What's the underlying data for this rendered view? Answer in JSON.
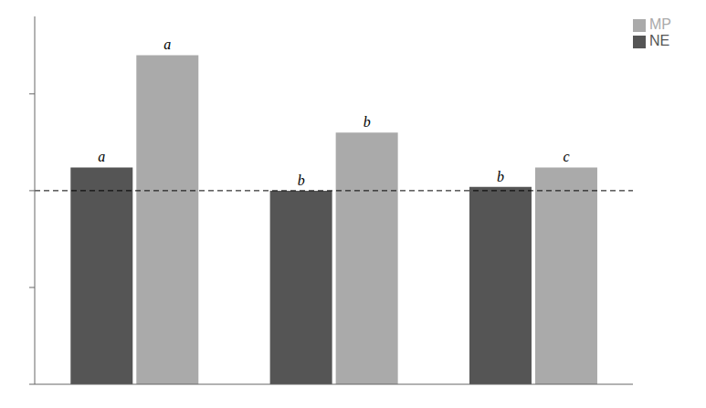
{
  "chart_data": {
    "type": "bar",
    "categories": [
      null,
      null,
      null
    ],
    "series": [
      {
        "name": "NE",
        "color": "#555555",
        "values": [
          112,
          100,
          102
        ],
        "annotations": [
          "a",
          "b",
          "b"
        ]
      },
      {
        "name": "MP",
        "color": "#aaaaaa",
        "values": [
          170,
          130,
          112
        ],
        "annotations": [
          "a",
          "b",
          "c"
        ]
      }
    ],
    "ylim": [
      0,
      190
    ],
    "yticks": [
      0,
      50,
      100,
      150
    ],
    "hlines": [
      {
        "value": 100,
        "line_style": "dashed"
      }
    ],
    "legend": "upper right",
    "grid": false,
    "tick_labels": false
  }
}
